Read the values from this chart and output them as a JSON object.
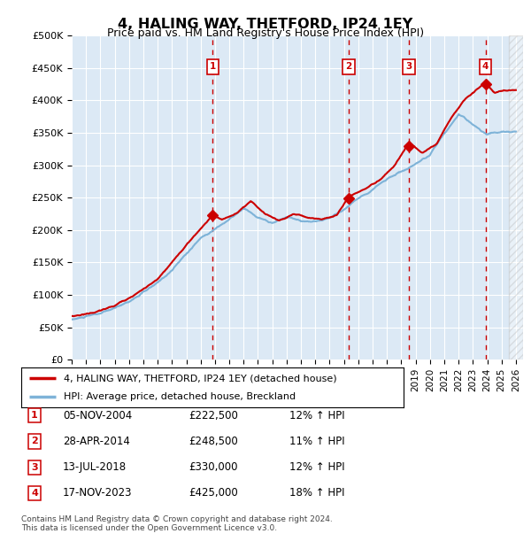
{
  "title": "4, HALING WAY, THETFORD, IP24 1EY",
  "subtitle": "Price paid vs. HM Land Registry's House Price Index (HPI)",
  "ylabel_ticks": [
    "£0",
    "£50K",
    "£100K",
    "£150K",
    "£200K",
    "£250K",
    "£300K",
    "£350K",
    "£400K",
    "£450K",
    "£500K"
  ],
  "ytick_values": [
    0,
    50000,
    100000,
    150000,
    200000,
    250000,
    300000,
    350000,
    400000,
    450000,
    500000
  ],
  "ylim": [
    0,
    500000
  ],
  "xlim_start": 1995.0,
  "xlim_end": 2026.5,
  "background_color": "#dce9f5",
  "hpi_color": "#7eb3d8",
  "price_color": "#cc0000",
  "transactions": [
    {
      "num": 1,
      "date_x": 2004.85,
      "price": 222500,
      "label": "05-NOV-2004",
      "pct": "12%"
    },
    {
      "num": 2,
      "date_x": 2014.33,
      "price": 248500,
      "label": "28-APR-2014",
      "pct": "11%"
    },
    {
      "num": 3,
      "date_x": 2018.54,
      "price": 330000,
      "label": "13-JUL-2018",
      "pct": "12%"
    },
    {
      "num": 4,
      "date_x": 2023.88,
      "price": 425000,
      "label": "17-NOV-2023",
      "pct": "18%"
    }
  ],
  "legend_line1": "4, HALING WAY, THETFORD, IP24 1EY (detached house)",
  "legend_line2": "HPI: Average price, detached house, Breckland",
  "table_rows": [
    {
      "num": 1,
      "date": "05-NOV-2004",
      "price": "£222,500",
      "pct": "12% ↑ HPI"
    },
    {
      "num": 2,
      "date": "28-APR-2014",
      "price": "£248,500",
      "pct": "11% ↑ HPI"
    },
    {
      "num": 3,
      "date": "13-JUL-2018",
      "price": "£330,000",
      "pct": "12% ↑ HPI"
    },
    {
      "num": 4,
      "date": "17-NOV-2023",
      "price": "£425,000",
      "pct": "18% ↑ HPI"
    }
  ],
  "footer": "Contains HM Land Registry data © Crown copyright and database right 2024.\nThis data is licensed under the Open Government Licence v3.0.",
  "xtick_years": [
    1995,
    1996,
    1997,
    1998,
    1999,
    2000,
    2001,
    2002,
    2003,
    2004,
    2005,
    2006,
    2007,
    2008,
    2009,
    2010,
    2011,
    2012,
    2013,
    2014,
    2015,
    2016,
    2017,
    2018,
    2019,
    2020,
    2021,
    2022,
    2023,
    2024,
    2025,
    2026
  ],
  "hpi_years": [
    1995,
    1996,
    1997,
    1998,
    1999,
    2000,
    2001,
    2002,
    2003,
    2004,
    2005,
    2006,
    2007,
    2008,
    2009,
    2010,
    2011,
    2012,
    2013,
    2014,
    2015,
    2016,
    2017,
    2018,
    2019,
    2020,
    2021,
    2022,
    2023,
    2024,
    2025,
    2026
  ],
  "hpi_values": [
    62000,
    66000,
    70000,
    77000,
    88000,
    102000,
    115000,
    135000,
    160000,
    185000,
    200000,
    215000,
    230000,
    215000,
    205000,
    215000,
    210000,
    208000,
    215000,
    228000,
    245000,
    262000,
    278000,
    290000,
    298000,
    310000,
    345000,
    375000,
    360000,
    345000,
    350000,
    352000
  ],
  "price_years": [
    1995.0,
    1996.0,
    1997.0,
    1998.0,
    1999.0,
    2000.0,
    2001.0,
    2002.0,
    2003.0,
    2004.85,
    2005.5,
    2006.5,
    2007.5,
    2008.5,
    2009.5,
    2010.5,
    2011.5,
    2012.5,
    2013.5,
    2014.33,
    2015.5,
    2016.5,
    2017.5,
    2018.54,
    2019.5,
    2020.5,
    2021.5,
    2022.5,
    2023.88,
    2024.5,
    2025.5,
    2026.0
  ],
  "price_values": [
    67000,
    71000,
    76000,
    83000,
    96000,
    110000,
    124000,
    148000,
    175000,
    222500,
    215000,
    225000,
    240000,
    220000,
    210000,
    220000,
    215000,
    213000,
    220000,
    248500,
    260000,
    275000,
    295000,
    330000,
    315000,
    330000,
    370000,
    400000,
    425000,
    410000,
    415000,
    416000
  ]
}
